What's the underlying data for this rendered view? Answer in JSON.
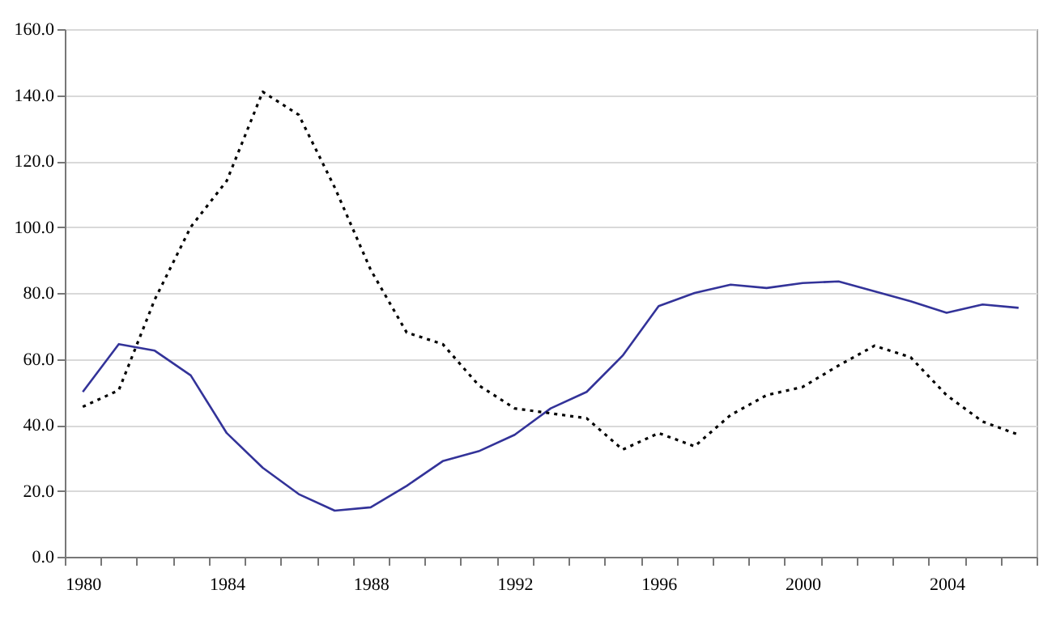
{
  "chart_data": {
    "type": "line",
    "categories": [
      "1980",
      null,
      null,
      null,
      "1984",
      null,
      null,
      null,
      "1988",
      null,
      null,
      null,
      "1992",
      null,
      null,
      null,
      "1996",
      null,
      null,
      null,
      "2000",
      null,
      null,
      null,
      "2004",
      null,
      null
    ],
    "series": [
      {
        "color": "#333399",
        "line_style": "solid",
        "values": [
          50,
          64.5,
          62.5,
          55,
          37.5,
          27,
          19,
          14,
          15,
          21.5,
          29,
          32,
          37,
          45,
          50,
          61,
          76,
          80,
          82.5,
          81.5,
          83,
          83.5,
          80.5,
          77.5,
          74,
          76.5,
          75.5
        ]
      },
      {
        "color": "#000000",
        "line_style": "dotted",
        "values": [
          45.5,
          50.5,
          78,
          100,
          114,
          141,
          134,
          112,
          87,
          68,
          64.5,
          52,
          45,
          43.5,
          42,
          32.5,
          37.5,
          33.5,
          43,
          49,
          51.5,
          58,
          64,
          60.5,
          49,
          41,
          37
        ]
      }
    ],
    "ylim": [
      0,
      160
    ],
    "yticks": [
      {
        "value": 0,
        "label": "0.0"
      },
      {
        "value": 20,
        "label": "20.0"
      },
      {
        "value": 40,
        "label": "40.0"
      },
      {
        "value": 60,
        "label": "60.0"
      },
      {
        "value": 80,
        "label": "80.0"
      },
      {
        "value": 100,
        "label": "100.0"
      },
      {
        "value": 120,
        "label": "120.0"
      },
      {
        "value": 140,
        "label": "140.0"
      },
      {
        "value": 160,
        "label": "160.0"
      }
    ],
    "grid": "y",
    "marker": "none"
  }
}
